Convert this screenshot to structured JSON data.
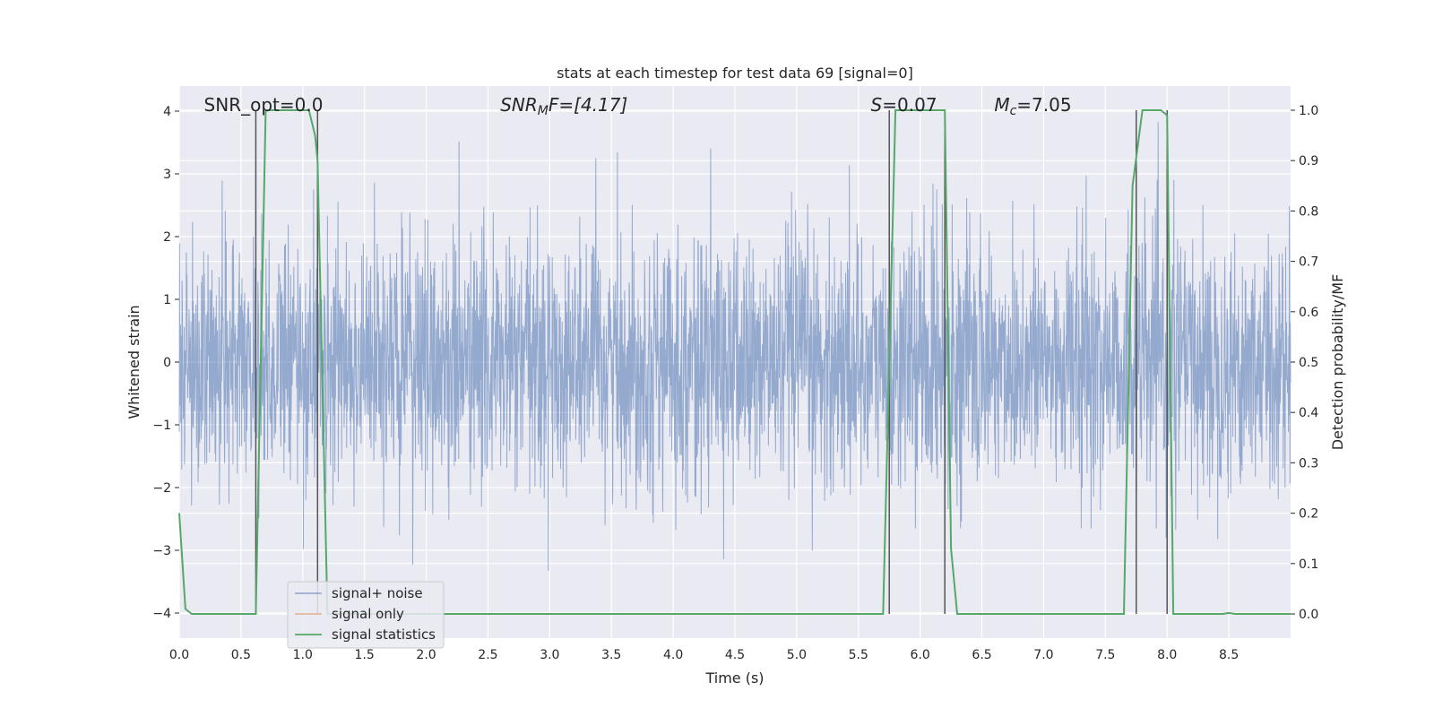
{
  "chart_data": {
    "type": "line",
    "title": "stats at each timestep for test data 69 [signal=0]",
    "xlabel": "Time (s)",
    "ylabel_left": "Whitened strain",
    "ylabel_right": "Detection probability/MF",
    "xlim": [
      0.0,
      9.0
    ],
    "ylim_left": [
      -4.4,
      4.4
    ],
    "ylim_right": [
      -0.048,
      1.048
    ],
    "x_ticks": [
      "0.0",
      "0.5",
      "1.0",
      "1.5",
      "2.0",
      "2.5",
      "3.0",
      "3.5",
      "4.0",
      "4.5",
      "5.0",
      "5.5",
      "6.0",
      "6.5",
      "7.0",
      "7.5",
      "8.0",
      "8.5"
    ],
    "y_ticks_left": [
      "4",
      "3",
      "2",
      "1",
      "0",
      "−1",
      "−2",
      "−3",
      "−4"
    ],
    "y_ticks_right": [
      "1.0",
      "0.9",
      "0.8",
      "0.7",
      "0.6",
      "0.5",
      "0.4",
      "0.3",
      "0.2",
      "0.1",
      "0.0"
    ],
    "grid": true,
    "legend_position": "lower-left",
    "annotations": [
      {
        "text": "SNR_opt=0.0",
        "x": 0.2
      },
      {
        "text": "SNR",
        "sub": "M",
        "tail": "F=[4.17]",
        "x": 2.6,
        "italic": true
      },
      {
        "text": "S",
        "tail": "=0.07",
        "x": 5.6,
        "italic_head": true
      },
      {
        "text": "M",
        "sub": "c",
        "tail": "=7.05",
        "x": 6.6,
        "italic_head": true
      }
    ],
    "series": [
      {
        "name": "signal+ noise",
        "color": "#4c72b0",
        "description": "whitened strain noise, roughly gaussian with sigma 1, range about -3.6 to 3.8",
        "sigma": 1.0
      },
      {
        "name": "signal only",
        "color": "#dd8452",
        "values": []
      },
      {
        "name": "signal statistics",
        "color": "#55a868",
        "x": [
          0.0,
          0.05,
          0.1,
          0.6,
          0.62,
          0.7,
          0.75,
          1.05,
          1.1,
          1.12,
          1.2,
          5.65,
          5.7,
          5.75,
          5.8,
          6.2,
          6.25,
          6.3,
          7.65,
          7.72,
          7.8,
          7.95,
          8.0,
          8.05,
          8.1,
          8.45,
          8.5,
          8.55,
          9.0
        ],
        "y": [
          0.2,
          0.01,
          0.0,
          0.0,
          0.0,
          1.0,
          1.0,
          1.0,
          0.95,
          0.9,
          0.0,
          0.0,
          0.0,
          0.5,
          1.0,
          1.0,
          0.13,
          0.0,
          0.0,
          0.85,
          1.0,
          1.0,
          0.99,
          0.0,
          0.0,
          0.0,
          0.002,
          0.0,
          0.0
        ]
      }
    ],
    "vertical_markers": [
      0.62,
      1.12,
      5.75,
      6.2,
      7.75,
      8.0
    ]
  }
}
